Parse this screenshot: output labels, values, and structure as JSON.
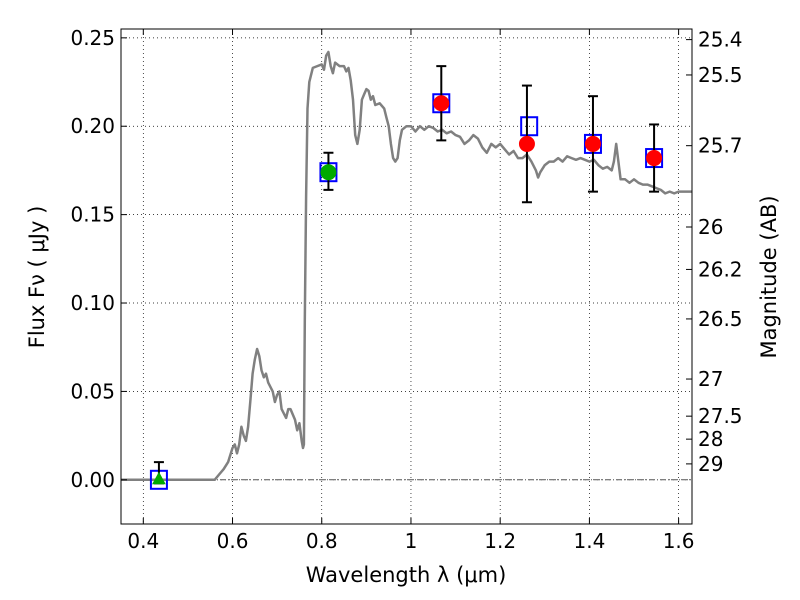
{
  "chart_data": {
    "type": "scatter",
    "title": "",
    "xlabel": "Wavelength  λ (μm)",
    "ylabel": "Flux  Fν  ( μJy )",
    "y2label": "Magnitude (AB)",
    "xlim": [
      0.35,
      1.63
    ],
    "ylim": [
      -0.025,
      0.255
    ],
    "grid": true,
    "xticks": [
      {
        "value": 0.4,
        "label": "0.4"
      },
      {
        "value": 0.6,
        "label": "0.6"
      },
      {
        "value": 0.8,
        "label": "0.8"
      },
      {
        "value": 1.0,
        "label": "1"
      },
      {
        "value": 1.2,
        "label": "1.2"
      },
      {
        "value": 1.4,
        "label": "1.4"
      },
      {
        "value": 1.6,
        "label": "1.6"
      }
    ],
    "yticks": [
      {
        "value": 0.0,
        "label": "0.00"
      },
      {
        "value": 0.05,
        "label": "0.05"
      },
      {
        "value": 0.1,
        "label": "0.10"
      },
      {
        "value": 0.15,
        "label": "0.15"
      },
      {
        "value": 0.2,
        "label": "0.20"
      },
      {
        "value": 0.25,
        "label": "0.25"
      }
    ],
    "mag_ticks": [
      {
        "label": "25.4",
        "flux": 0.249
      },
      {
        "label": "25.5",
        "flux": 0.229
      },
      {
        "label": "25.7",
        "flux": 0.189
      },
      {
        "label": "26",
        "flux": 0.143
      },
      {
        "label": "26.2",
        "flux": 0.119
      },
      {
        "label": "26.5",
        "flux": 0.091
      },
      {
        "label": "27",
        "flux": 0.057
      },
      {
        "label": "27.5",
        "flux": 0.036
      },
      {
        "label": "28",
        "flux": 0.023
      },
      {
        "label": "29",
        "flux": 0.009
      }
    ],
    "zero_line": 0,
    "series": [
      {
        "name": "model-spectrum",
        "kind": "line",
        "color": "#808080",
        "points": [
          [
            0.35,
            0.0
          ],
          [
            0.5,
            0.0
          ],
          [
            0.55,
            0.0
          ],
          [
            0.56,
            0.0
          ],
          [
            0.57,
            0.003
          ],
          [
            0.58,
            0.006
          ],
          [
            0.59,
            0.01
          ],
          [
            0.6,
            0.018
          ],
          [
            0.605,
            0.02
          ],
          [
            0.61,
            0.015
          ],
          [
            0.615,
            0.02
          ],
          [
            0.62,
            0.03
          ],
          [
            0.625,
            0.025
          ],
          [
            0.63,
            0.022
          ],
          [
            0.635,
            0.03
          ],
          [
            0.64,
            0.045
          ],
          [
            0.645,
            0.06
          ],
          [
            0.65,
            0.068
          ],
          [
            0.655,
            0.074
          ],
          [
            0.66,
            0.07
          ],
          [
            0.665,
            0.062
          ],
          [
            0.67,
            0.058
          ],
          [
            0.675,
            0.06
          ],
          [
            0.68,
            0.055
          ],
          [
            0.69,
            0.05
          ],
          [
            0.695,
            0.044
          ],
          [
            0.7,
            0.048
          ],
          [
            0.705,
            0.05
          ],
          [
            0.71,
            0.04
          ],
          [
            0.72,
            0.035
          ],
          [
            0.725,
            0.04
          ],
          [
            0.73,
            0.04
          ],
          [
            0.74,
            0.034
          ],
          [
            0.745,
            0.028
          ],
          [
            0.75,
            0.032
          ],
          [
            0.755,
            0.022
          ],
          [
            0.758,
            0.018
          ],
          [
            0.76,
            0.02
          ],
          [
            0.762,
            0.09
          ],
          [
            0.765,
            0.16
          ],
          [
            0.768,
            0.21
          ],
          [
            0.772,
            0.225
          ],
          [
            0.78,
            0.233
          ],
          [
            0.79,
            0.234
          ],
          [
            0.8,
            0.235
          ],
          [
            0.805,
            0.232
          ],
          [
            0.81,
            0.24
          ],
          [
            0.815,
            0.242
          ],
          [
            0.82,
            0.234
          ],
          [
            0.825,
            0.23
          ],
          [
            0.83,
            0.236
          ],
          [
            0.84,
            0.234
          ],
          [
            0.85,
            0.234
          ],
          [
            0.855,
            0.231
          ],
          [
            0.86,
            0.233
          ],
          [
            0.865,
            0.226
          ],
          [
            0.87,
            0.215
          ],
          [
            0.875,
            0.195
          ],
          [
            0.88,
            0.19
          ],
          [
            0.885,
            0.198
          ],
          [
            0.89,
            0.215
          ],
          [
            0.895,
            0.218
          ],
          [
            0.9,
            0.221
          ],
          [
            0.905,
            0.22
          ],
          [
            0.91,
            0.215
          ],
          [
            0.915,
            0.217
          ],
          [
            0.92,
            0.212
          ],
          [
            0.93,
            0.213
          ],
          [
            0.94,
            0.21
          ],
          [
            0.945,
            0.205
          ],
          [
            0.95,
            0.2
          ],
          [
            0.955,
            0.19
          ],
          [
            0.96,
            0.182
          ],
          [
            0.965,
            0.18
          ],
          [
            0.97,
            0.182
          ],
          [
            0.975,
            0.192
          ],
          [
            0.98,
            0.198
          ],
          [
            0.99,
            0.2
          ],
          [
            1.0,
            0.2
          ],
          [
            1.01,
            0.197
          ],
          [
            1.02,
            0.2
          ],
          [
            1.03,
            0.198
          ],
          [
            1.04,
            0.2
          ],
          [
            1.05,
            0.199
          ],
          [
            1.06,
            0.197
          ],
          [
            1.07,
            0.198
          ],
          [
            1.08,
            0.196
          ],
          [
            1.09,
            0.197
          ],
          [
            1.1,
            0.195
          ],
          [
            1.11,
            0.194
          ],
          [
            1.12,
            0.19
          ],
          [
            1.13,
            0.192
          ],
          [
            1.14,
            0.195
          ],
          [
            1.15,
            0.193
          ],
          [
            1.16,
            0.188
          ],
          [
            1.17,
            0.185
          ],
          [
            1.18,
            0.19
          ],
          [
            1.19,
            0.188
          ],
          [
            1.2,
            0.19
          ],
          [
            1.21,
            0.187
          ],
          [
            1.22,
            0.184
          ],
          [
            1.23,
            0.186
          ],
          [
            1.24,
            0.182
          ],
          [
            1.25,
            0.182
          ],
          [
            1.26,
            0.184
          ],
          [
            1.27,
            0.18
          ],
          [
            1.28,
            0.175
          ],
          [
            1.285,
            0.171
          ],
          [
            1.29,
            0.174
          ],
          [
            1.3,
            0.178
          ],
          [
            1.31,
            0.18
          ],
          [
            1.32,
            0.18
          ],
          [
            1.33,
            0.182
          ],
          [
            1.34,
            0.18
          ],
          [
            1.35,
            0.183
          ],
          [
            1.36,
            0.182
          ],
          [
            1.37,
            0.181
          ],
          [
            1.38,
            0.182
          ],
          [
            1.39,
            0.181
          ],
          [
            1.4,
            0.18
          ],
          [
            1.41,
            0.181
          ],
          [
            1.42,
            0.178
          ],
          [
            1.43,
            0.176
          ],
          [
            1.44,
            0.177
          ],
          [
            1.45,
            0.175
          ],
          [
            1.455,
            0.18
          ],
          [
            1.46,
            0.19
          ],
          [
            1.465,
            0.18
          ],
          [
            1.47,
            0.17
          ],
          [
            1.48,
            0.17
          ],
          [
            1.49,
            0.168
          ],
          [
            1.5,
            0.17
          ],
          [
            1.51,
            0.168
          ],
          [
            1.52,
            0.167
          ],
          [
            1.53,
            0.167
          ],
          [
            1.54,
            0.166
          ],
          [
            1.55,
            0.165
          ],
          [
            1.56,
            0.164
          ],
          [
            1.57,
            0.162
          ],
          [
            1.58,
            0.163
          ],
          [
            1.59,
            0.162
          ],
          [
            1.6,
            0.163
          ],
          [
            1.63,
            0.163
          ]
        ]
      },
      {
        "name": "model-fluxes",
        "kind": "marker",
        "marker": "square",
        "color": "#0000ff",
        "points": [
          [
            0.435,
            0.0
          ],
          [
            0.815,
            0.174
          ],
          [
            1.068,
            0.213
          ],
          [
            1.265,
            0.2
          ],
          [
            1.408,
            0.19
          ],
          [
            1.545,
            0.182
          ]
        ]
      },
      {
        "name": "observed-fluxes",
        "kind": "marker",
        "marker": "circle",
        "color": "#ff0000",
        "points": [
          {
            "x": 1.068,
            "y": 0.213,
            "err": [
              0.021,
              0.021
            ]
          },
          {
            "x": 1.26,
            "y": 0.19,
            "err": [
              0.033,
              0.033
            ]
          },
          {
            "x": 1.408,
            "y": 0.19,
            "err": [
              0.027,
              0.027
            ]
          },
          {
            "x": 1.545,
            "y": 0.182,
            "err": [
              0.019,
              0.019
            ]
          }
        ]
      },
      {
        "name": "observed-fluxes-optical",
        "kind": "marker",
        "marker": "circle",
        "color": "#00aa00",
        "points": [
          {
            "x": 0.815,
            "y": 0.174,
            "err": [
              0.01,
              0.011
            ]
          }
        ]
      },
      {
        "name": "upper-limit",
        "kind": "marker",
        "marker": "triangle",
        "color": "#00aa00",
        "points": [
          {
            "x": 0.435,
            "y": 0.0,
            "err": [
              0.002,
              0.01
            ]
          }
        ]
      }
    ]
  }
}
